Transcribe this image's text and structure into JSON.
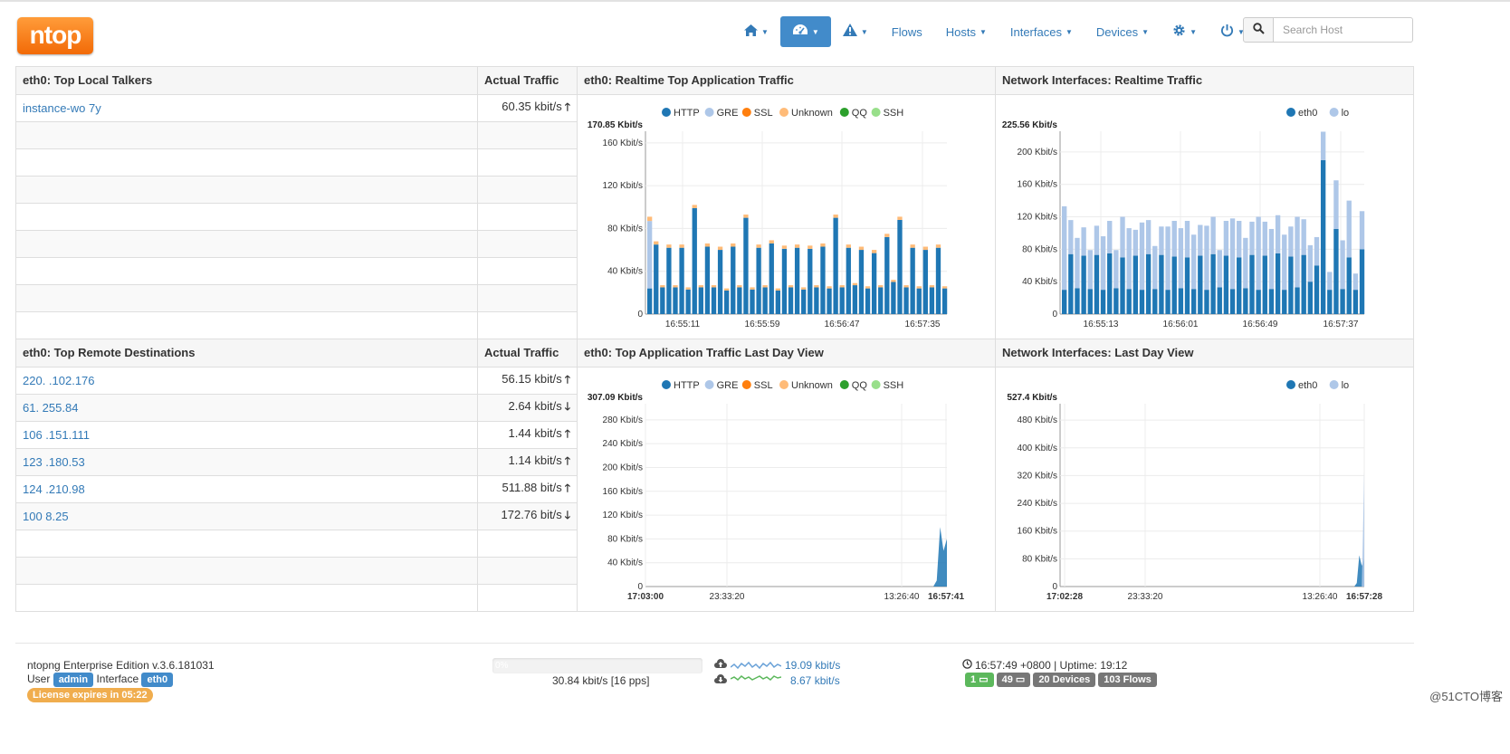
{
  "brand": {
    "logo_text": "ntop"
  },
  "nav": {
    "home_icon": "home-icon",
    "dashboard_icon": "dashboard-icon",
    "alerts_icon": "alert-icon",
    "flows": "Flows",
    "hosts": "Hosts",
    "interfaces": "Interfaces",
    "devices": "Devices",
    "settings_icon": "gear-icon",
    "power_icon": "power-icon",
    "search_icon": "search-icon",
    "search_placeholder": "Search Host"
  },
  "top_local": {
    "title": "eth0: Top Local Talkers",
    "traffic_header": "Actual Traffic",
    "rows": [
      {
        "host": "instance-wo      7y",
        "traffic": "60.35 kbit/s",
        "arrow": "🡑"
      }
    ]
  },
  "top_remote": {
    "title": "eth0: Top Remote Destinations",
    "traffic_header": "Actual Traffic",
    "rows": [
      {
        "host": "220.    .102.176",
        "traffic": "56.15 kbit/s",
        "arrow": "🡑"
      },
      {
        "host": "61.    255.84",
        "traffic": "2.64 kbit/s",
        "arrow": "🡓"
      },
      {
        "host": "106    .151.111",
        "traffic": "1.44 kbit/s",
        "arrow": "🡑"
      },
      {
        "host": "123    .180.53",
        "traffic": "1.14 kbit/s",
        "arrow": "🡑"
      },
      {
        "host": "124    .210.98",
        "traffic": "511.88 bit/s",
        "arrow": "🡑"
      },
      {
        "host": "100    8.25",
        "traffic": "172.76 bit/s",
        "arrow": "🡓"
      }
    ]
  },
  "charts": {
    "app_realtime": {
      "title": "eth0: Realtime Top Application Traffic"
    },
    "if_realtime": {
      "title": "Network Interfaces: Realtime Traffic"
    },
    "app_day": {
      "title": "eth0: Top Application Traffic Last Day View"
    },
    "if_day": {
      "title": "Network Interfaces: Last Day View"
    }
  },
  "colors": {
    "HTTP": "#1f77b4",
    "GRE": "#aec7e8",
    "SSL": "#ff7f0e",
    "Unknown": "#ffbb78",
    "QQ": "#2ca02c",
    "SSH": "#98df8a",
    "eth0": "#1f77b4",
    "lo": "#aec7e8"
  },
  "chart_data": [
    {
      "type": "bar",
      "title": "eth0: Realtime Top Application Traffic",
      "stacked": true,
      "max_label": "170.85 Kbit/s",
      "yticks": [
        "0",
        "40 Kbit/s",
        "80 Kbit/s",
        "120 Kbit/s",
        "160 Kbit/s"
      ],
      "ylim": [
        0,
        170.85
      ],
      "xticks": [
        "16:55:11",
        "16:55:59",
        "16:56:47",
        "16:57:35"
      ],
      "legend": [
        "HTTP",
        "GRE",
        "SSL",
        "Unknown",
        "QQ",
        "SSH"
      ],
      "series": [
        {
          "name": "HTTP",
          "values": [
            24,
            65,
            25,
            62,
            25,
            62,
            23,
            99,
            25,
            63,
            25,
            60,
            22,
            63,
            25,
            90,
            23,
            62,
            25,
            66,
            22,
            61,
            25,
            62,
            23,
            61,
            25,
            63,
            24,
            90,
            25,
            62,
            27,
            60,
            24,
            57,
            25,
            72,
            30,
            88,
            25,
            62,
            24,
            60,
            25,
            62,
            24
          ]
        },
        {
          "name": "GRE",
          "values": [
            63,
            0,
            0,
            0,
            0,
            0,
            0,
            0,
            0,
            0,
            0,
            0,
            0,
            0,
            0,
            0,
            0,
            0,
            0,
            0,
            0,
            0,
            0,
            0,
            0,
            0,
            0,
            0,
            0,
            0,
            0,
            0,
            0,
            0,
            0,
            0,
            0,
            0,
            0,
            0,
            0,
            0,
            0,
            0,
            0,
            0,
            0
          ]
        },
        {
          "name": "SSL",
          "values": [
            0,
            0,
            0,
            0,
            0,
            0,
            0,
            0,
            0,
            0,
            0,
            0,
            0,
            0,
            0,
            0,
            0,
            0,
            0,
            0,
            0,
            0,
            0,
            0,
            0,
            0,
            0,
            0,
            0,
            0,
            0,
            0,
            0,
            0,
            0,
            0,
            0,
            0,
            0,
            0,
            0,
            0,
            0,
            0,
            0,
            0,
            0
          ]
        },
        {
          "name": "Unknown",
          "values": [
            4,
            3,
            2,
            3,
            2,
            3,
            2,
            3,
            2,
            3,
            2,
            3,
            2,
            3,
            2,
            3,
            2,
            3,
            2,
            3,
            2,
            3,
            2,
            3,
            2,
            3,
            2,
            3,
            2,
            3,
            2,
            3,
            2,
            3,
            2,
            3,
            2,
            3,
            2,
            3,
            2,
            3,
            2,
            3,
            2,
            3,
            2
          ]
        },
        {
          "name": "QQ",
          "values": [
            0,
            0,
            0,
            0,
            0,
            0,
            0,
            0,
            0,
            0,
            0,
            0,
            0,
            0,
            0,
            0,
            0,
            0,
            0,
            0,
            0,
            0,
            0,
            0,
            0,
            0,
            0,
            0,
            0,
            0,
            0,
            0,
            0,
            0,
            0,
            0,
            0,
            0,
            0,
            0,
            0,
            0,
            0,
            0,
            0,
            0,
            0
          ]
        },
        {
          "name": "SSH",
          "values": [
            0,
            0,
            0,
            0,
            0,
            0,
            0,
            0,
            0,
            0,
            0,
            0,
            0,
            0,
            0,
            0,
            0,
            0,
            0,
            0,
            0,
            0,
            0,
            0,
            0,
            0,
            0,
            0,
            0,
            0,
            0,
            0,
            0,
            0,
            0,
            0,
            0,
            0,
            0,
            0,
            0,
            0,
            0,
            0,
            0,
            0,
            0
          ]
        }
      ]
    },
    {
      "type": "bar",
      "title": "Network Interfaces: Realtime Traffic",
      "stacked": true,
      "max_label": "225.56 Kbit/s",
      "yticks": [
        "0",
        "40 Kbit/s",
        "80 Kbit/s",
        "120 Kbit/s",
        "160 Kbit/s",
        "200 Kbit/s"
      ],
      "ylim": [
        0,
        225.56
      ],
      "xticks": [
        "16:55:13",
        "16:56:01",
        "16:56:49",
        "16:57:37"
      ],
      "legend": [
        "eth0",
        "lo"
      ],
      "series": [
        {
          "name": "eth0",
          "values": [
            30,
            74,
            32,
            72,
            31,
            73,
            30,
            75,
            32,
            70,
            31,
            72,
            30,
            74,
            31,
            73,
            30,
            71,
            32,
            70,
            31,
            72,
            30,
            74,
            33,
            72,
            31,
            70,
            32,
            73,
            30,
            72,
            31,
            75,
            30,
            71,
            33,
            73,
            40,
            60,
            190,
            30,
            105,
            31,
            70,
            30,
            80
          ]
        },
        {
          "name": "lo",
          "values": [
            103,
            42,
            62,
            35,
            48,
            36,
            66,
            40,
            47,
            50,
            75,
            32,
            83,
            42,
            53,
            35,
            78,
            44,
            74,
            45,
            67,
            38,
            79,
            46,
            46,
            43,
            87,
            45,
            62,
            41,
            90,
            42,
            74,
            47,
            68,
            37,
            87,
            44,
            45,
            35,
            35,
            22,
            60,
            60,
            70,
            20,
            47
          ]
        }
      ]
    },
    {
      "type": "area",
      "title": "eth0: Top Application Traffic Last Day View",
      "max_label": "307.09 Kbit/s",
      "yticks": [
        "0",
        "40 Kbit/s",
        "80 Kbit/s",
        "120 Kbit/s",
        "160 Kbit/s",
        "200 Kbit/s",
        "240 Kbit/s",
        "280 Kbit/s"
      ],
      "ylim": [
        0,
        307.09
      ],
      "xticks": [
        "17:03:00",
        "23:33:20",
        "13:26:40",
        "16:57:41"
      ],
      "legend": [
        "HTTP",
        "GRE",
        "SSL",
        "Unknown",
        "QQ",
        "SSH"
      ],
      "series": [
        {
          "name": "HTTP",
          "values": [
            0,
            0,
            0,
            0,
            0,
            0,
            0,
            0,
            0,
            0,
            0,
            0,
            0,
            0,
            0,
            0,
            0,
            0,
            0,
            0,
            0,
            0,
            0,
            0,
            0,
            0,
            0,
            0,
            0,
            0,
            0,
            0,
            0,
            0,
            0,
            0,
            0,
            0,
            0,
            0,
            0,
            0,
            0,
            0,
            0,
            0,
            0,
            10,
            100,
            60,
            80
          ]
        }
      ]
    },
    {
      "type": "area",
      "title": "Network Interfaces: Last Day View",
      "max_label": "527.4 Kbit/s",
      "yticks": [
        "0",
        "80 Kbit/s",
        "160 Kbit/s",
        "240 Kbit/s",
        "320 Kbit/s",
        "400 Kbit/s",
        "480 Kbit/s"
      ],
      "ylim": [
        0,
        527.4
      ],
      "xticks": [
        "17:02:28",
        "23:33:20",
        "13:26:40",
        "16:57:28"
      ],
      "legend": [
        "eth0",
        "lo"
      ],
      "series": [
        {
          "name": "eth0",
          "values": [
            0,
            0,
            0,
            0,
            0,
            0,
            0,
            0,
            0,
            0,
            0,
            0,
            0,
            0,
            0,
            0,
            0,
            0,
            0,
            0,
            0,
            0,
            0,
            0,
            0,
            0,
            0,
            0,
            0,
            0,
            0,
            0,
            0,
            0,
            0,
            0,
            0,
            0,
            0,
            0,
            0,
            0,
            0,
            0,
            0,
            0,
            0,
            10,
            90,
            60,
            80
          ]
        },
        {
          "name": "lo",
          "values": [
            0,
            0,
            0,
            0,
            0,
            0,
            0,
            0,
            0,
            0,
            0,
            0,
            0,
            0,
            0,
            0,
            0,
            0,
            0,
            0,
            0,
            0,
            0,
            0,
            0,
            0,
            0,
            0,
            0,
            0,
            0,
            0,
            0,
            0,
            0,
            0,
            0,
            0,
            0,
            0,
            0,
            0,
            0,
            0,
            0,
            0,
            0,
            0,
            0,
            0,
            330
          ]
        }
      ]
    }
  ],
  "footer": {
    "edition": "ntopng Enterprise Edition v.3.6.181031",
    "user_label": "User",
    "user": "admin",
    "interface_label": "Interface",
    "interface": "eth0",
    "license": "License expires in 05:22",
    "progress_label": "0%",
    "progress": 0,
    "throughput": "30.84 kbit/s [16 pps]",
    "upload": "19.09 kbit/s",
    "download": "8.67 kbit/s",
    "clock_icon": "clock-icon",
    "time": "16:57:49 +0800 | Uptime: 19:12",
    "badges": [
      "1",
      "49",
      "20 Devices",
      "103 Flows"
    ]
  },
  "watermark": "@51CTO博客"
}
